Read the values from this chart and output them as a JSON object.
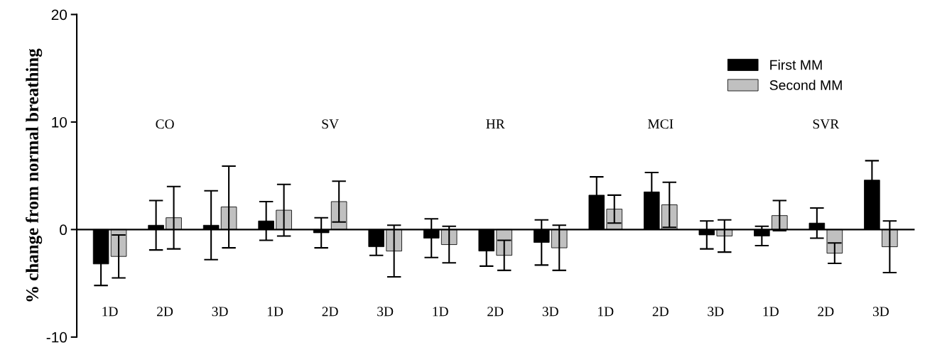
{
  "chart_data": {
    "type": "bar",
    "ylabel": "% change from normal breathing",
    "categories": [
      "1D",
      "2D",
      "3D",
      "1D",
      "2D",
      "3D",
      "1D",
      "2D",
      "3D",
      "1D",
      "2D",
      "3D",
      "1D",
      "2D",
      "3D"
    ],
    "series": [
      {
        "name": "First MM",
        "color": "#000000",
        "values": [
          -3.2,
          0.4,
          0.4,
          0.8,
          -0.3,
          -1.6,
          -0.8,
          -2.0,
          -1.2,
          3.2,
          3.5,
          -0.5,
          -0.6,
          0.6,
          4.6
        ],
        "errors": [
          2.0,
          2.3,
          3.2,
          1.8,
          1.4,
          0.8,
          1.8,
          1.4,
          2.1,
          1.7,
          1.8,
          1.3,
          0.9,
          1.4,
          1.8
        ]
      },
      {
        "name": "Second MM",
        "color": "#c0c0c0",
        "values": [
          -2.5,
          1.1,
          2.1,
          1.8,
          2.6,
          -2.0,
          -1.4,
          -2.4,
          -1.7,
          1.9,
          2.3,
          -0.6,
          1.3,
          -2.2,
          -1.6
        ],
        "errors": [
          2.0,
          2.9,
          3.8,
          2.4,
          1.9,
          2.4,
          1.7,
          1.4,
          2.1,
          1.3,
          2.1,
          1.5,
          1.4,
          0.95,
          2.4
        ]
      }
    ],
    "annotations": [
      "CO",
      "SV",
      "HR",
      "MCI",
      "SVR"
    ],
    "ylim": [
      -10,
      20
    ],
    "yticks": [
      -10,
      0,
      10,
      20
    ],
    "legend": "top right"
  }
}
